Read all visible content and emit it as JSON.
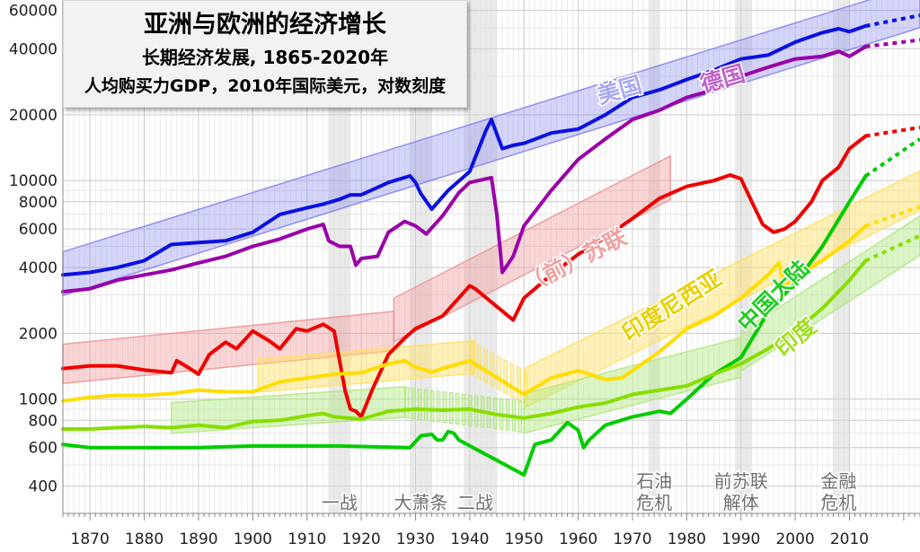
{
  "chart_data": {
    "type": "line",
    "title": "亚洲与欧洲的经济增长",
    "subtitle": "长期经济发展, 1865-2020年",
    "subtitle2": "人均购买力GDP，2010年国际美元，对数刻度",
    "xlabel": "",
    "ylabel": "",
    "xlim": [
      1865,
      2023
    ],
    "ylim": [
      300,
      67000
    ],
    "yscale": "log",
    "grid": true,
    "x_ticks": [
      1870,
      1880,
      1890,
      1900,
      1910,
      1920,
      1930,
      1940,
      1950,
      1960,
      1970,
      1980,
      1990,
      2000,
      2010
    ],
    "y_ticks": [
      400,
      600,
      800,
      1000,
      2000,
      4000,
      6000,
      8000,
      10000,
      20000,
      40000,
      60000
    ],
    "y_tick_labels": [
      "400",
      "600",
      "800",
      "1000",
      "2000",
      "4000",
      "6000",
      "8000",
      "10000",
      "20000",
      "40000",
      "60000"
    ],
    "series": [
      {
        "name": "美国",
        "color": "#0a10e0",
        "x": [
          1865,
          1870,
          1875,
          1880,
          1885,
          1890,
          1895,
          1900,
          1905,
          1910,
          1913,
          1916,
          1918,
          1920,
          1925,
          1929,
          1930,
          1931,
          1933,
          1936,
          1940,
          1943,
          1944,
          1946,
          1948,
          1950,
          1955,
          1960,
          1965,
          1970,
          1975,
          1980,
          1985,
          1990,
          1995,
          2000,
          2005,
          2008,
          2010,
          2013
        ],
        "values": [
          3700,
          3800,
          4000,
          4300,
          5100,
          5200,
          5300,
          5800,
          7000,
          7500,
          7800,
          8200,
          8600,
          8600,
          9800,
          10500,
          9800,
          8700,
          7400,
          9000,
          11000,
          17000,
          19000,
          14000,
          14500,
          14800,
          16500,
          17200,
          20000,
          24000,
          26000,
          29000,
          32000,
          36000,
          37500,
          43000,
          47500,
          49500,
          48000,
          51000
        ]
      },
      {
        "name": "",
        "color": "#0a10e0",
        "dashed": true,
        "x": [
          2013,
          2023
        ],
        "values": [
          51000,
          57000
        ]
      },
      {
        "name": "德国",
        "color": "#9900a8",
        "x": [
          1865,
          1870,
          1875,
          1880,
          1885,
          1890,
          1895,
          1900,
          1905,
          1910,
          1913,
          1914,
          1916,
          1918,
          1919,
          1920,
          1923,
          1925,
          1928,
          1930,
          1932,
          1935,
          1938,
          1940,
          1944,
          1945,
          1946,
          1948,
          1950,
          1955,
          1960,
          1965,
          1970,
          1975,
          1980,
          1985,
          1990,
          1995,
          2000,
          2005,
          2008,
          2010,
          2013
        ],
        "values": [
          3100,
          3200,
          3500,
          3700,
          3900,
          4200,
          4500,
          5000,
          5400,
          6000,
          6300,
          5300,
          5000,
          5000,
          4100,
          4400,
          4500,
          5800,
          6500,
          6200,
          5700,
          6900,
          8800,
          9800,
          10300,
          7000,
          3800,
          4500,
          6200,
          9000,
          12500,
          15500,
          19000,
          21000,
          24000,
          26000,
          30000,
          33000,
          36000,
          37000,
          39000,
          37000,
          41000
        ]
      },
      {
        "name": "",
        "color": "#9900a8",
        "dashed": true,
        "x": [
          2013,
          2023
        ],
        "values": [
          41000,
          44000
        ]
      },
      {
        "name": "（前）苏联",
        "color": "#ee0000",
        "x": [
          1865,
          1870,
          1875,
          1880,
          1885,
          1886,
          1888,
          1890,
          1892,
          1895,
          1897,
          1900,
          1903,
          1905,
          1908,
          1910,
          1913,
          1915,
          1917,
          1918,
          1919,
          1920,
          1922,
          1925,
          1928,
          1930,
          1935,
          1940,
          1941,
          1948,
          1950,
          1955,
          1960,
          1965,
          1970,
          1975,
          1980,
          1985,
          1988,
          1990,
          1992,
          1994,
          1996,
          1998,
          2000,
          2003,
          2005,
          2008,
          2010,
          2013
        ],
        "values": [
          1380,
          1420,
          1420,
          1360,
          1320,
          1500,
          1400,
          1300,
          1600,
          1820,
          1700,
          2050,
          1850,
          1700,
          2100,
          2050,
          2200,
          2050,
          1100,
          900,
          880,
          830,
          1100,
          1600,
          1900,
          2100,
          2400,
          3300,
          3200,
          2300,
          2900,
          3700,
          4600,
          5500,
          6700,
          8300,
          9400,
          10000,
          10600,
          10200,
          8000,
          6300,
          5800,
          6000,
          6500,
          8000,
          10000,
          11500,
          14000,
          16000
        ]
      },
      {
        "name": "",
        "color": "#ee0000",
        "dashed": true,
        "x": [
          2013,
          2023
        ],
        "values": [
          16000,
          17500
        ]
      },
      {
        "name": "印度尼西亚",
        "color": "#ffdd00",
        "x": [
          1865,
          1870,
          1875,
          1880,
          1885,
          1890,
          1895,
          1900,
          1905,
          1910,
          1915,
          1920,
          1925,
          1928,
          1930,
          1933,
          1935,
          1938,
          1940,
          1950,
          1955,
          1960,
          1965,
          1968,
          1970,
          1975,
          1980,
          1985,
          1990,
          1995,
          1997,
          1998,
          2000,
          2005,
          2010,
          2013
        ],
        "values": [
          980,
          1020,
          1040,
          1040,
          1060,
          1100,
          1080,
          1080,
          1200,
          1250,
          1300,
          1320,
          1450,
          1500,
          1400,
          1330,
          1380,
          1450,
          1500,
          1050,
          1250,
          1350,
          1230,
          1250,
          1350,
          1650,
          2100,
          2400,
          2900,
          3700,
          4200,
          3300,
          3600,
          4300,
          5300,
          6200
        ]
      },
      {
        "name": "",
        "color": "#ffdd00",
        "dashed": true,
        "x": [
          2013,
          2023
        ],
        "values": [
          6200,
          7600
        ]
      },
      {
        "name": "中国大陆",
        "color": "#00cc00",
        "x": [
          1865,
          1870,
          1880,
          1890,
          1900,
          1910,
          1913,
          1916,
          1929,
          1931,
          1933,
          1934,
          1935,
          1936,
          1937,
          1938,
          1950,
          1952,
          1955,
          1958,
          1960,
          1961,
          1962,
          1965,
          1970,
          1975,
          1977,
          1980,
          1985,
          1990,
          1995,
          2000,
          2005,
          2010,
          2013
        ],
        "values": [
          620,
          600,
          600,
          600,
          610,
          610,
          610,
          610,
          600,
          680,
          690,
          650,
          650,
          710,
          700,
          650,
          450,
          620,
          650,
          780,
          720,
          600,
          650,
          760,
          830,
          880,
          860,
          1000,
          1300,
          1550,
          2500,
          3400,
          5000,
          8000,
          10500
        ]
      },
      {
        "name": "",
        "color": "#00cc00",
        "dashed": true,
        "x": [
          2013,
          2023
        ],
        "values": [
          10500,
          15500
        ]
      },
      {
        "name": "印度",
        "color": "#88dd00",
        "x": [
          1865,
          1870,
          1875,
          1880,
          1885,
          1890,
          1895,
          1900,
          1905,
          1910,
          1913,
          1915,
          1920,
          1925,
          1930,
          1935,
          1940,
          1945,
          1950,
          1955,
          1960,
          1965,
          1970,
          1975,
          1980,
          1985,
          1990,
          1995,
          2000,
          2005,
          2010,
          2013
        ],
        "values": [
          730,
          730,
          740,
          750,
          740,
          760,
          740,
          790,
          800,
          840,
          860,
          830,
          810,
          880,
          900,
          890,
          900,
          850,
          820,
          860,
          920,
          960,
          1050,
          1100,
          1150,
          1300,
          1450,
          1700,
          2050,
          2600,
          3500,
          4300
        ]
      },
      {
        "name": "",
        "color": "#88dd00",
        "dashed": true,
        "x": [
          2013,
          2023
        ],
        "values": [
          4300,
          5600
        ]
      }
    ],
    "series_labels": [
      {
        "text": "美国",
        "color": "#a8a8f0",
        "x": 1968,
        "y": 24000,
        "rotate": -16,
        "size": 25
      },
      {
        "text": "德国",
        "color": "#c060c8",
        "x": 1987,
        "y": 27000,
        "rotate": -16,
        "size": 25
      },
      {
        "text": "（前）苏联",
        "color": "#f0a0a0",
        "x": 1960,
        "y": 4000,
        "rotate": -27,
        "size": 25
      },
      {
        "text": "印度尼西亚",
        "color": "#e8d000",
        "x": 1978,
        "y": 2500,
        "rotate": -32,
        "size": 25
      },
      {
        "text": "中国大陆",
        "color": "#22cc22",
        "x": 1997,
        "y": 2800,
        "rotate": -45,
        "size": 25
      },
      {
        "text": "印度",
        "color": "#a0dd20",
        "x": 2001,
        "y": 1800,
        "rotate": -40,
        "size": 25
      }
    ],
    "trend_bands": [
      {
        "color": "#8080f0",
        "x1": 1865,
        "y1": 3750,
        "x2": 2023,
        "y2": 63000,
        "halfwidth": 0.1,
        "opacity": 0.33
      },
      {
        "color": "#f09090",
        "x1": 1865,
        "y1": 1450,
        "x2": 1926,
        "y2": 2050,
        "halfwidth": 0.09,
        "opacity": 0.38
      },
      {
        "color": "#f09090",
        "x1": 1926,
        "y1": 2300,
        "x2": 1977,
        "y2": 10300,
        "halfwidth": 0.1,
        "opacity": 0.38
      },
      {
        "color": "#ffe060",
        "x1": 1901,
        "y1": 1280,
        "x2": 1941,
        "y2": 1560,
        "halfwidth": 0.075,
        "opacity": 0.45
      },
      {
        "color": "#ffe060",
        "x1": 1940,
        "y1": 1560,
        "x2": 1951,
        "y2": 1100,
        "halfwidth": 0.075,
        "opacity": 0.45,
        "striped": true
      },
      {
        "color": "#ffe060",
        "x1": 1950,
        "y1": 1120,
        "x2": 2023,
        "y2": 9000,
        "halfwidth": 0.09,
        "opacity": 0.45
      },
      {
        "color": "#b0e880",
        "x1": 1885,
        "y1": 820,
        "x2": 1928,
        "y2": 970,
        "halfwidth": 0.07,
        "opacity": 0.45
      },
      {
        "color": "#b0e880",
        "x1": 1928,
        "y1": 965,
        "x2": 1950,
        "y2": 830,
        "halfwidth": 0.07,
        "opacity": 0.45,
        "striped": true
      },
      {
        "color": "#b0e880",
        "x1": 1950,
        "y1": 860,
        "x2": 1990,
        "y2": 1550,
        "halfwidth": 0.09,
        "opacity": 0.45
      },
      {
        "color": "#b0e880",
        "x1": 1990,
        "y1": 1650,
        "x2": 2023,
        "y2": 5600,
        "halfwidth": 0.09,
        "opacity": 0.45
      }
    ],
    "events": [
      {
        "label": "一战",
        "x_from": 1914,
        "x_to": 1918,
        "x_text": 1916
      },
      {
        "label": "大萧条",
        "x_from": 1929,
        "x_to": 1933,
        "x_text": 1931
      },
      {
        "label": "二战",
        "x_from": 1939,
        "x_to": 1945,
        "x_text": 1941
      },
      {
        "label": "石油\n危机",
        "x_from": 1973,
        "x_to": 1975,
        "x_text": 1974
      },
      {
        "label": "前苏联\n解体",
        "x_from": 1989,
        "x_to": 1992,
        "x_text": 1990
      },
      {
        "label": "金融\n危机",
        "x_from": 2007,
        "x_to": 2010,
        "x_text": 2008
      }
    ]
  }
}
